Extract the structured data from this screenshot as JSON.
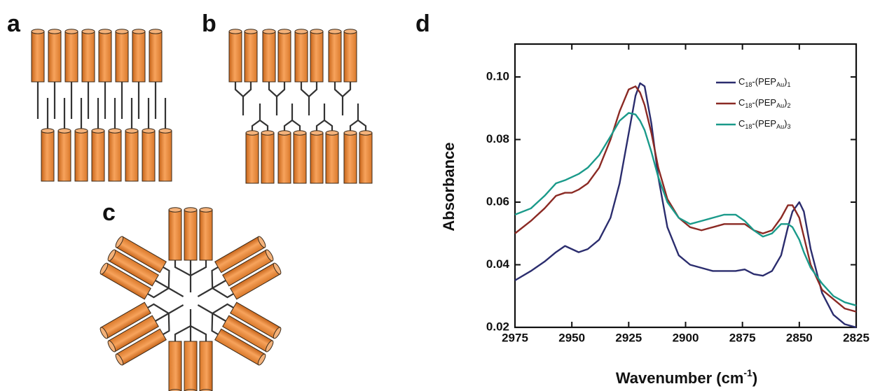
{
  "panels": {
    "a": "a",
    "b": "b",
    "c": "c",
    "d": "d"
  },
  "chart_data": {
    "type": "line",
    "x_label": "Wavenumber (cm-1)",
    "y_label": "Absorbance",
    "x": [
      2975,
      2968,
      2962,
      2957,
      2953,
      2950,
      2947,
      2943,
      2938,
      2933,
      2929,
      2925,
      2922,
      2920,
      2918,
      2915,
      2912,
      2908,
      2903,
      2898,
      2893,
      2888,
      2883,
      2878,
      2874,
      2870,
      2866,
      2862,
      2858,
      2855,
      2853,
      2850,
      2848,
      2845,
      2840,
      2835,
      2830,
      2825
    ],
    "xlim": [
      2975,
      2825
    ],
    "xticks": [
      2975,
      2950,
      2925,
      2900,
      2875,
      2850,
      2825
    ],
    "ylim": [
      0.02,
      0.1105
    ],
    "yticks": [
      0.02,
      0.04,
      0.06,
      0.08,
      {
        "value": 0.1,
        "label": "0.10"
      }
    ],
    "grid": false,
    "legend": "upper right",
    "series": [
      {
        "name": "C18-(PEPAu)1",
        "color": "#2b2d6e",
        "values": [
          0.035,
          0.038,
          0.041,
          0.044,
          0.046,
          0.045,
          0.044,
          0.045,
          0.048,
          0.055,
          0.066,
          0.082,
          0.094,
          0.098,
          0.097,
          0.085,
          0.068,
          0.052,
          0.043,
          0.04,
          0.039,
          0.038,
          0.038,
          0.038,
          0.0385,
          0.037,
          0.0365,
          0.038,
          0.043,
          0.052,
          0.057,
          0.06,
          0.057,
          0.045,
          0.031,
          0.024,
          0.021,
          0.02
        ]
      },
      {
        "name": "C18-(PEPAu)2",
        "color": "#8b2a24",
        "values": [
          0.05,
          0.054,
          0.058,
          0.062,
          0.063,
          0.063,
          0.064,
          0.066,
          0.071,
          0.08,
          0.089,
          0.096,
          0.097,
          0.095,
          0.091,
          0.082,
          0.071,
          0.061,
          0.055,
          0.052,
          0.051,
          0.052,
          0.053,
          0.053,
          0.053,
          0.051,
          0.05,
          0.051,
          0.055,
          0.059,
          0.059,
          0.055,
          0.049,
          0.04,
          0.032,
          0.029,
          0.026,
          0.025
        ]
      },
      {
        "name": "C18-(PEPAu)3",
        "color": "#1a9a8a",
        "values": [
          0.056,
          0.058,
          0.062,
          0.066,
          0.067,
          0.068,
          0.069,
          0.071,
          0.075,
          0.081,
          0.086,
          0.0885,
          0.088,
          0.086,
          0.083,
          0.076,
          0.068,
          0.06,
          0.055,
          0.053,
          0.054,
          0.055,
          0.056,
          0.056,
          0.054,
          0.051,
          0.049,
          0.05,
          0.053,
          0.053,
          0.052,
          0.048,
          0.044,
          0.039,
          0.034,
          0.03,
          0.028,
          0.027
        ]
      }
    ]
  }
}
